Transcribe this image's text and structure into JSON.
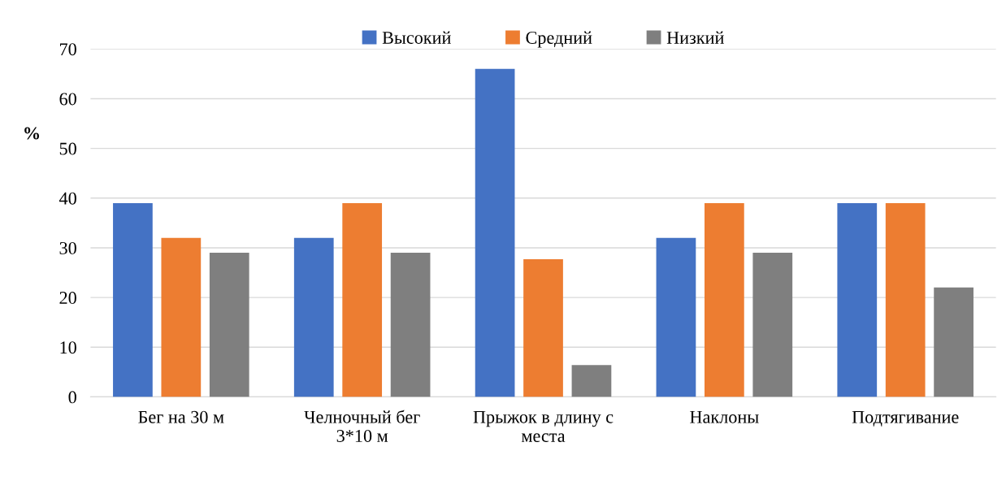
{
  "chart_data": {
    "type": "bar",
    "ylabel": "%",
    "categories": [
      "Бег на 30 м",
      "Челночный бег\n3*10 м",
      "Прыжок в длину с\nместа",
      "Наклоны",
      "Подтягивание"
    ],
    "series": [
      {
        "name": "Высокий",
        "color": "#4472c4",
        "values": [
          39,
          32,
          66,
          32,
          39
        ]
      },
      {
        "name": "Средний",
        "color": "#ed7d31",
        "values": [
          32,
          39,
          27.7,
          39,
          39
        ]
      },
      {
        "name": "Низкий",
        "color": "#7f7f7f",
        "values": [
          29,
          29,
          6.4,
          29,
          22
        ]
      }
    ],
    "ylim": [
      0,
      70
    ],
    "yticks": [
      0,
      10,
      20,
      30,
      40,
      50,
      60,
      70
    ],
    "grid": "y",
    "legend": "top"
  }
}
